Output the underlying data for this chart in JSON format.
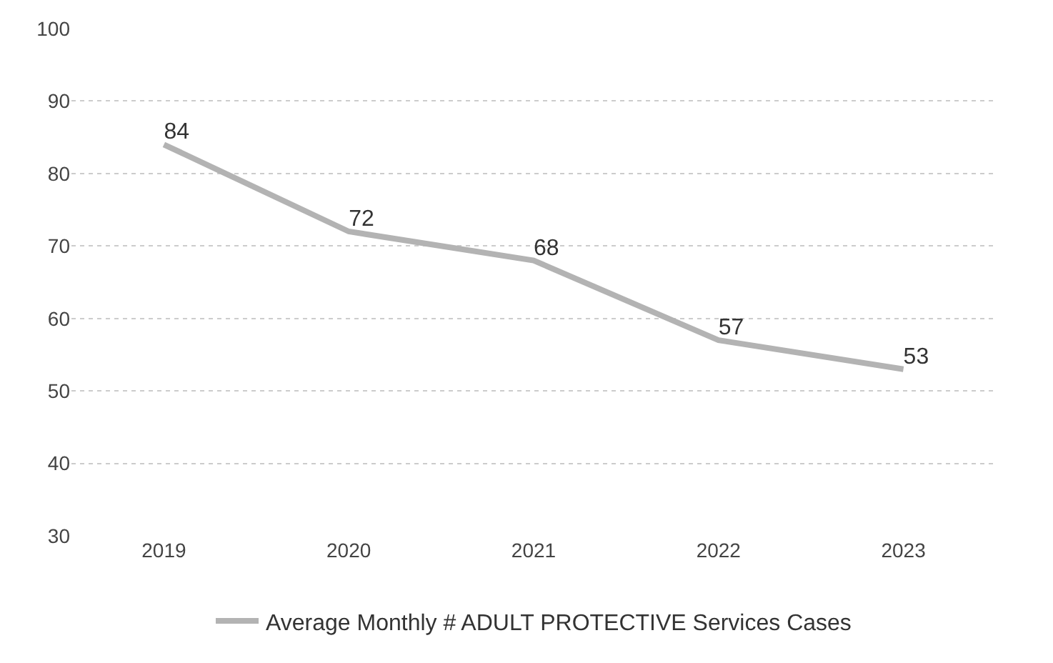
{
  "chart_data": {
    "type": "line",
    "categories": [
      "2019",
      "2020",
      "2021",
      "2022",
      "2023"
    ],
    "series": [
      {
        "name": "Average Monthly # ADULT PROTECTIVE Services Cases",
        "color": "#b3b3b3",
        "values": [
          84,
          72,
          68,
          57,
          53
        ]
      }
    ],
    "ylim": [
      30,
      100
    ],
    "yticks": [
      30,
      40,
      50,
      60,
      70,
      80,
      90,
      100
    ],
    "grid": "y",
    "legend": "bottom",
    "marker": "none",
    "line_style": "solid",
    "data_labels": true
  }
}
